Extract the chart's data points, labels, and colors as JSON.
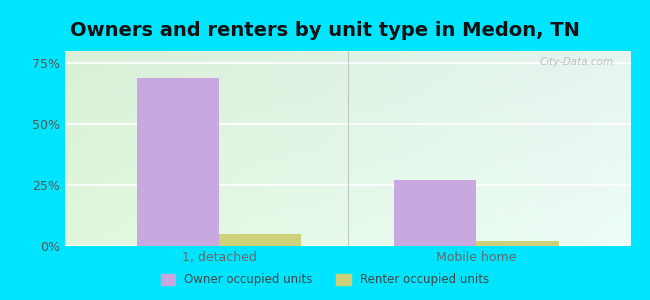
{
  "title": "Owners and renters by unit type in Medon, TN",
  "categories": [
    "1, detached",
    "Mobile home"
  ],
  "owner_values": [
    69,
    27
  ],
  "renter_values": [
    5,
    2
  ],
  "owner_color": "#c9a8e0",
  "renter_color": "#cdd17a",
  "ylim": [
    0,
    80
  ],
  "yticks": [
    0,
    25,
    50,
    75
  ],
  "ytick_labels": [
    "0%",
    "25%",
    "50%",
    "75%"
  ],
  "bar_width": 0.32,
  "outer_bg": "#00e5ff",
  "title_fontsize": 14,
  "legend_labels": [
    "Owner occupied units",
    "Renter occupied units"
  ],
  "watermark": "City-Data.com",
  "grid_color": "#ffffff",
  "bg_left": "#e6f5e0",
  "bg_right": "#d0f5f0"
}
